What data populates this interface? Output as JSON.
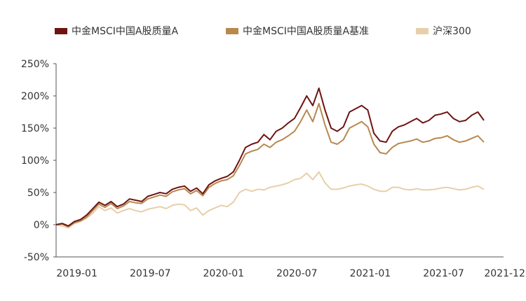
{
  "chart_data": {
    "type": "line",
    "title": "",
    "xlabel": "",
    "ylabel": "",
    "ylim": [
      -50,
      250
    ],
    "y_ticks": [
      -50,
      0,
      50,
      100,
      150,
      200,
      250
    ],
    "y_tick_labels": [
      "-50%",
      "0%",
      "50%",
      "100%",
      "150%",
      "200%",
      "250%"
    ],
    "x_range": [
      0,
      35
    ],
    "x_tick_labels": [
      "2019-01",
      "2019-07",
      "2020-01",
      "2020-07",
      "2021-01",
      "2021-07",
      "2021-12"
    ],
    "x_tick_positions": [
      1.7,
      7.7,
      13.7,
      19.7,
      25.7,
      31.7,
      36.7
    ],
    "grid": false,
    "legend_position": "top",
    "series": [
      {
        "name": "中金MSCI中国A股质量A",
        "color": "#6e1412",
        "x": [
          0,
          0.5,
          1,
          1.5,
          2,
          2.5,
          3,
          3.5,
          4,
          4.5,
          5,
          5.5,
          6,
          6.5,
          7,
          7.5,
          8,
          8.5,
          9,
          9.5,
          10,
          10.5,
          11,
          11.5,
          12,
          12.5,
          13,
          13.5,
          14,
          14.5,
          15,
          15.5,
          16,
          16.5,
          17,
          17.5,
          18,
          18.5,
          19,
          19.5,
          20,
          20.5,
          21,
          21.5,
          22,
          22.5,
          23,
          23.5,
          24,
          24.5,
          25,
          25.5,
          26,
          26.5,
          27,
          27.5,
          28,
          28.5,
          29,
          29.5,
          30,
          30.5,
          31,
          31.5,
          32,
          32.5,
          33,
          33.5,
          34,
          34.5,
          35
        ],
        "values": [
          0,
          2,
          -2,
          5,
          8,
          15,
          25,
          35,
          30,
          36,
          28,
          32,
          40,
          38,
          36,
          44,
          47,
          50,
          48,
          55,
          58,
          60,
          52,
          57,
          48,
          62,
          68,
          72,
          75,
          82,
          100,
          120,
          125,
          128,
          140,
          132,
          145,
          150,
          158,
          165,
          182,
          200,
          185,
          212,
          178,
          150,
          145,
          152,
          175,
          180,
          185,
          178,
          142,
          130,
          128,
          145,
          152,
          155,
          160,
          165,
          158,
          162,
          170,
          172,
          175,
          165,
          160,
          162,
          170,
          175,
          162
        ]
      },
      {
        "name": "中金MSCI中国A股质量A基准",
        "color": "#b8884f",
        "x": [
          0,
          0.5,
          1,
          1.5,
          2,
          2.5,
          3,
          3.5,
          4,
          4.5,
          5,
          5.5,
          6,
          6.5,
          7,
          7.5,
          8,
          8.5,
          9,
          9.5,
          10,
          10.5,
          11,
          11.5,
          12,
          12.5,
          13,
          13.5,
          14,
          14.5,
          15,
          15.5,
          16,
          16.5,
          17,
          17.5,
          18,
          18.5,
          19,
          19.5,
          20,
          20.5,
          21,
          21.5,
          22,
          22.5,
          23,
          23.5,
          24,
          24.5,
          25,
          25.5,
          26,
          26.5,
          27,
          27.5,
          28,
          28.5,
          29,
          29.5,
          30,
          30.5,
          31,
          31.5,
          32,
          32.5,
          33,
          33.5,
          34,
          34.5,
          35
        ],
        "values": [
          0,
          1,
          -3,
          3,
          6,
          12,
          22,
          32,
          27,
          33,
          25,
          29,
          36,
          34,
          33,
          40,
          43,
          46,
          44,
          51,
          54,
          56,
          48,
          53,
          45,
          58,
          64,
          68,
          70,
          76,
          92,
          110,
          114,
          117,
          125,
          120,
          128,
          132,
          138,
          145,
          160,
          178,
          160,
          188,
          155,
          128,
          125,
          132,
          150,
          155,
          160,
          152,
          125,
          112,
          110,
          120,
          126,
          128,
          130,
          133,
          128,
          130,
          134,
          135,
          138,
          132,
          128,
          130,
          134,
          138,
          128
        ]
      },
      {
        "name": "沪深300",
        "color": "#e7cfa9",
        "x": [
          0,
          0.5,
          1,
          1.5,
          2,
          2.5,
          3,
          3.5,
          4,
          4.5,
          5,
          5.5,
          6,
          6.5,
          7,
          7.5,
          8,
          8.5,
          9,
          9.5,
          10,
          10.5,
          11,
          11.5,
          12,
          12.5,
          13,
          13.5,
          14,
          14.5,
          15,
          15.5,
          16,
          16.5,
          17,
          17.5,
          18,
          18.5,
          19,
          19.5,
          20,
          20.5,
          21,
          21.5,
          22,
          22.5,
          23,
          23.5,
          24,
          24.5,
          25,
          25.5,
          26,
          26.5,
          27,
          27.5,
          28,
          28.5,
          29,
          29.5,
          30,
          30.5,
          31,
          31.5,
          32,
          32.5,
          33,
          33.5,
          34,
          34.5,
          35
        ],
        "values": [
          0,
          -2,
          -5,
          2,
          5,
          10,
          18,
          28,
          22,
          26,
          18,
          22,
          25,
          22,
          20,
          24,
          26,
          28,
          25,
          30,
          32,
          31,
          22,
          26,
          15,
          22,
          26,
          30,
          28,
          35,
          50,
          55,
          52,
          55,
          54,
          58,
          60,
          62,
          65,
          70,
          72,
          80,
          70,
          82,
          65,
          55,
          55,
          57,
          60,
          62,
          63,
          60,
          55,
          52,
          52,
          58,
          58,
          55,
          54,
          56,
          54,
          54,
          55,
          57,
          58,
          56,
          54,
          55,
          58,
          60,
          55
        ]
      }
    ]
  }
}
